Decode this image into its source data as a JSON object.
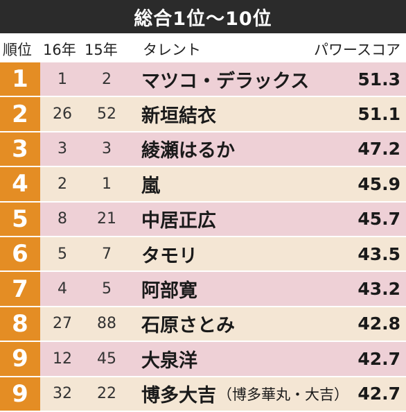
{
  "title": "総合1位～10位",
  "headers": {
    "rank": "順位",
    "y16": "16年",
    "y15": "15年",
    "talent": "タレント",
    "score": "パワースコア"
  },
  "rows": [
    {
      "rank": "1",
      "y16": "1",
      "y15": "2",
      "name": "マツコ・デラックス",
      "note": "",
      "score": "51.3",
      "bg": "pink"
    },
    {
      "rank": "2",
      "y16": "26",
      "y15": "52",
      "name": "新垣結衣",
      "note": "",
      "score": "51.1",
      "bg": "beige"
    },
    {
      "rank": "3",
      "y16": "3",
      "y15": "3",
      "name": "綾瀬はるか",
      "note": "",
      "score": "47.2",
      "bg": "pink"
    },
    {
      "rank": "4",
      "y16": "2",
      "y15": "1",
      "name": "嵐",
      "note": "",
      "score": "45.9",
      "bg": "beige"
    },
    {
      "rank": "5",
      "y16": "8",
      "y15": "21",
      "name": "中居正広",
      "note": "",
      "score": "45.7",
      "bg": "pink"
    },
    {
      "rank": "6",
      "y16": "5",
      "y15": "7",
      "name": "タモリ",
      "note": "",
      "score": "43.5",
      "bg": "beige"
    },
    {
      "rank": "7",
      "y16": "4",
      "y15": "5",
      "name": "阿部寛",
      "note": "",
      "score": "43.2",
      "bg": "pink"
    },
    {
      "rank": "8",
      "y16": "27",
      "y15": "88",
      "name": "石原さとみ",
      "note": "",
      "score": "42.8",
      "bg": "beige"
    },
    {
      "rank": "9",
      "y16": "12",
      "y15": "45",
      "name": "大泉洋",
      "note": "",
      "score": "42.7",
      "bg": "pink"
    },
    {
      "rank": "9",
      "y16": "32",
      "y15": "22",
      "name": "博多大吉",
      "note": "（博多華丸・大吉）",
      "score": "42.7",
      "bg": "beige"
    }
  ]
}
